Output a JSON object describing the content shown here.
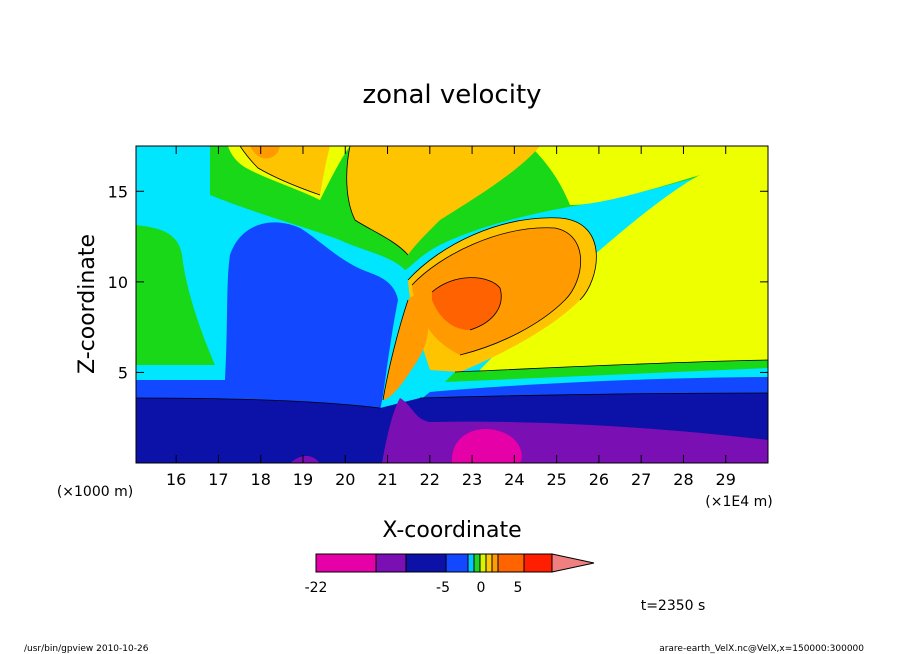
{
  "chart_data": {
    "type": "contour",
    "title": "zonal velocity",
    "xlabel": "X-coordinate",
    "ylabel": "Z-coordinate",
    "x_unit_note": "(×1E4 m)",
    "y_unit_note": "(×1000 m)",
    "xlim": [
      15.05,
      30.0
    ],
    "ylim": [
      0,
      17.5
    ],
    "x_ticks": [
      16,
      17,
      18,
      19,
      20,
      21,
      22,
      23,
      24,
      25,
      26,
      27,
      28,
      29
    ],
    "x_tick_labels": [
      "16",
      "17",
      "18",
      "19",
      "20",
      "21",
      "22",
      "23",
      "24",
      "25",
      "26",
      "27",
      "28",
      "29"
    ],
    "y_ticks": [
      5,
      10,
      15
    ],
    "y_tick_labels": [
      "5",
      "10",
      "15"
    ],
    "grid": false,
    "colorbar": {
      "colors": [
        "#e600a8",
        "#7a0fb3",
        "#0c11a8",
        "#1248ff",
        "#00c8ff",
        "#22d422",
        "#d8f500",
        "#ffc800",
        "#ff9c00",
        "#ff6400",
        "#ff1e00",
        "#f08080"
      ],
      "levels": [
        -22,
        -15,
        -10,
        -5,
        -2,
        0,
        2,
        5
      ],
      "tick_labels": [
        "-22",
        "-5",
        "0",
        "5"
      ]
    },
    "regions": [
      {
        "level": -5,
        "desc": "blue core"
      },
      {
        "level": -10,
        "desc": "dark blue band"
      },
      {
        "level": -15,
        "desc": "purple lower layer"
      },
      {
        "level": -22,
        "desc": "magenta core near x=23"
      },
      {
        "level": 2,
        "desc": "yellow upper right"
      },
      {
        "level": 5,
        "desc": "orange lobe"
      },
      {
        "level": 10,
        "desc": "dark orange core"
      }
    ]
  },
  "time_label": "t=2350 s",
  "footer": {
    "left": "/usr/bin/gpview   2010-10-26",
    "right": "arare-earth_VelX.nc@VelX,x=150000:300000"
  },
  "colors": {
    "magenta": "#e600a8",
    "purple": "#7a0fb3",
    "navy": "#0c11a8",
    "blue": "#1248ff",
    "cyan": "#00e6ff",
    "green": "#18d818",
    "yellow": "#eeff00",
    "gold": "#ffc400",
    "orange": "#ff9a00",
    "darkorange": "#ff6200",
    "red": "#ff1800",
    "pink": "#f08080"
  }
}
